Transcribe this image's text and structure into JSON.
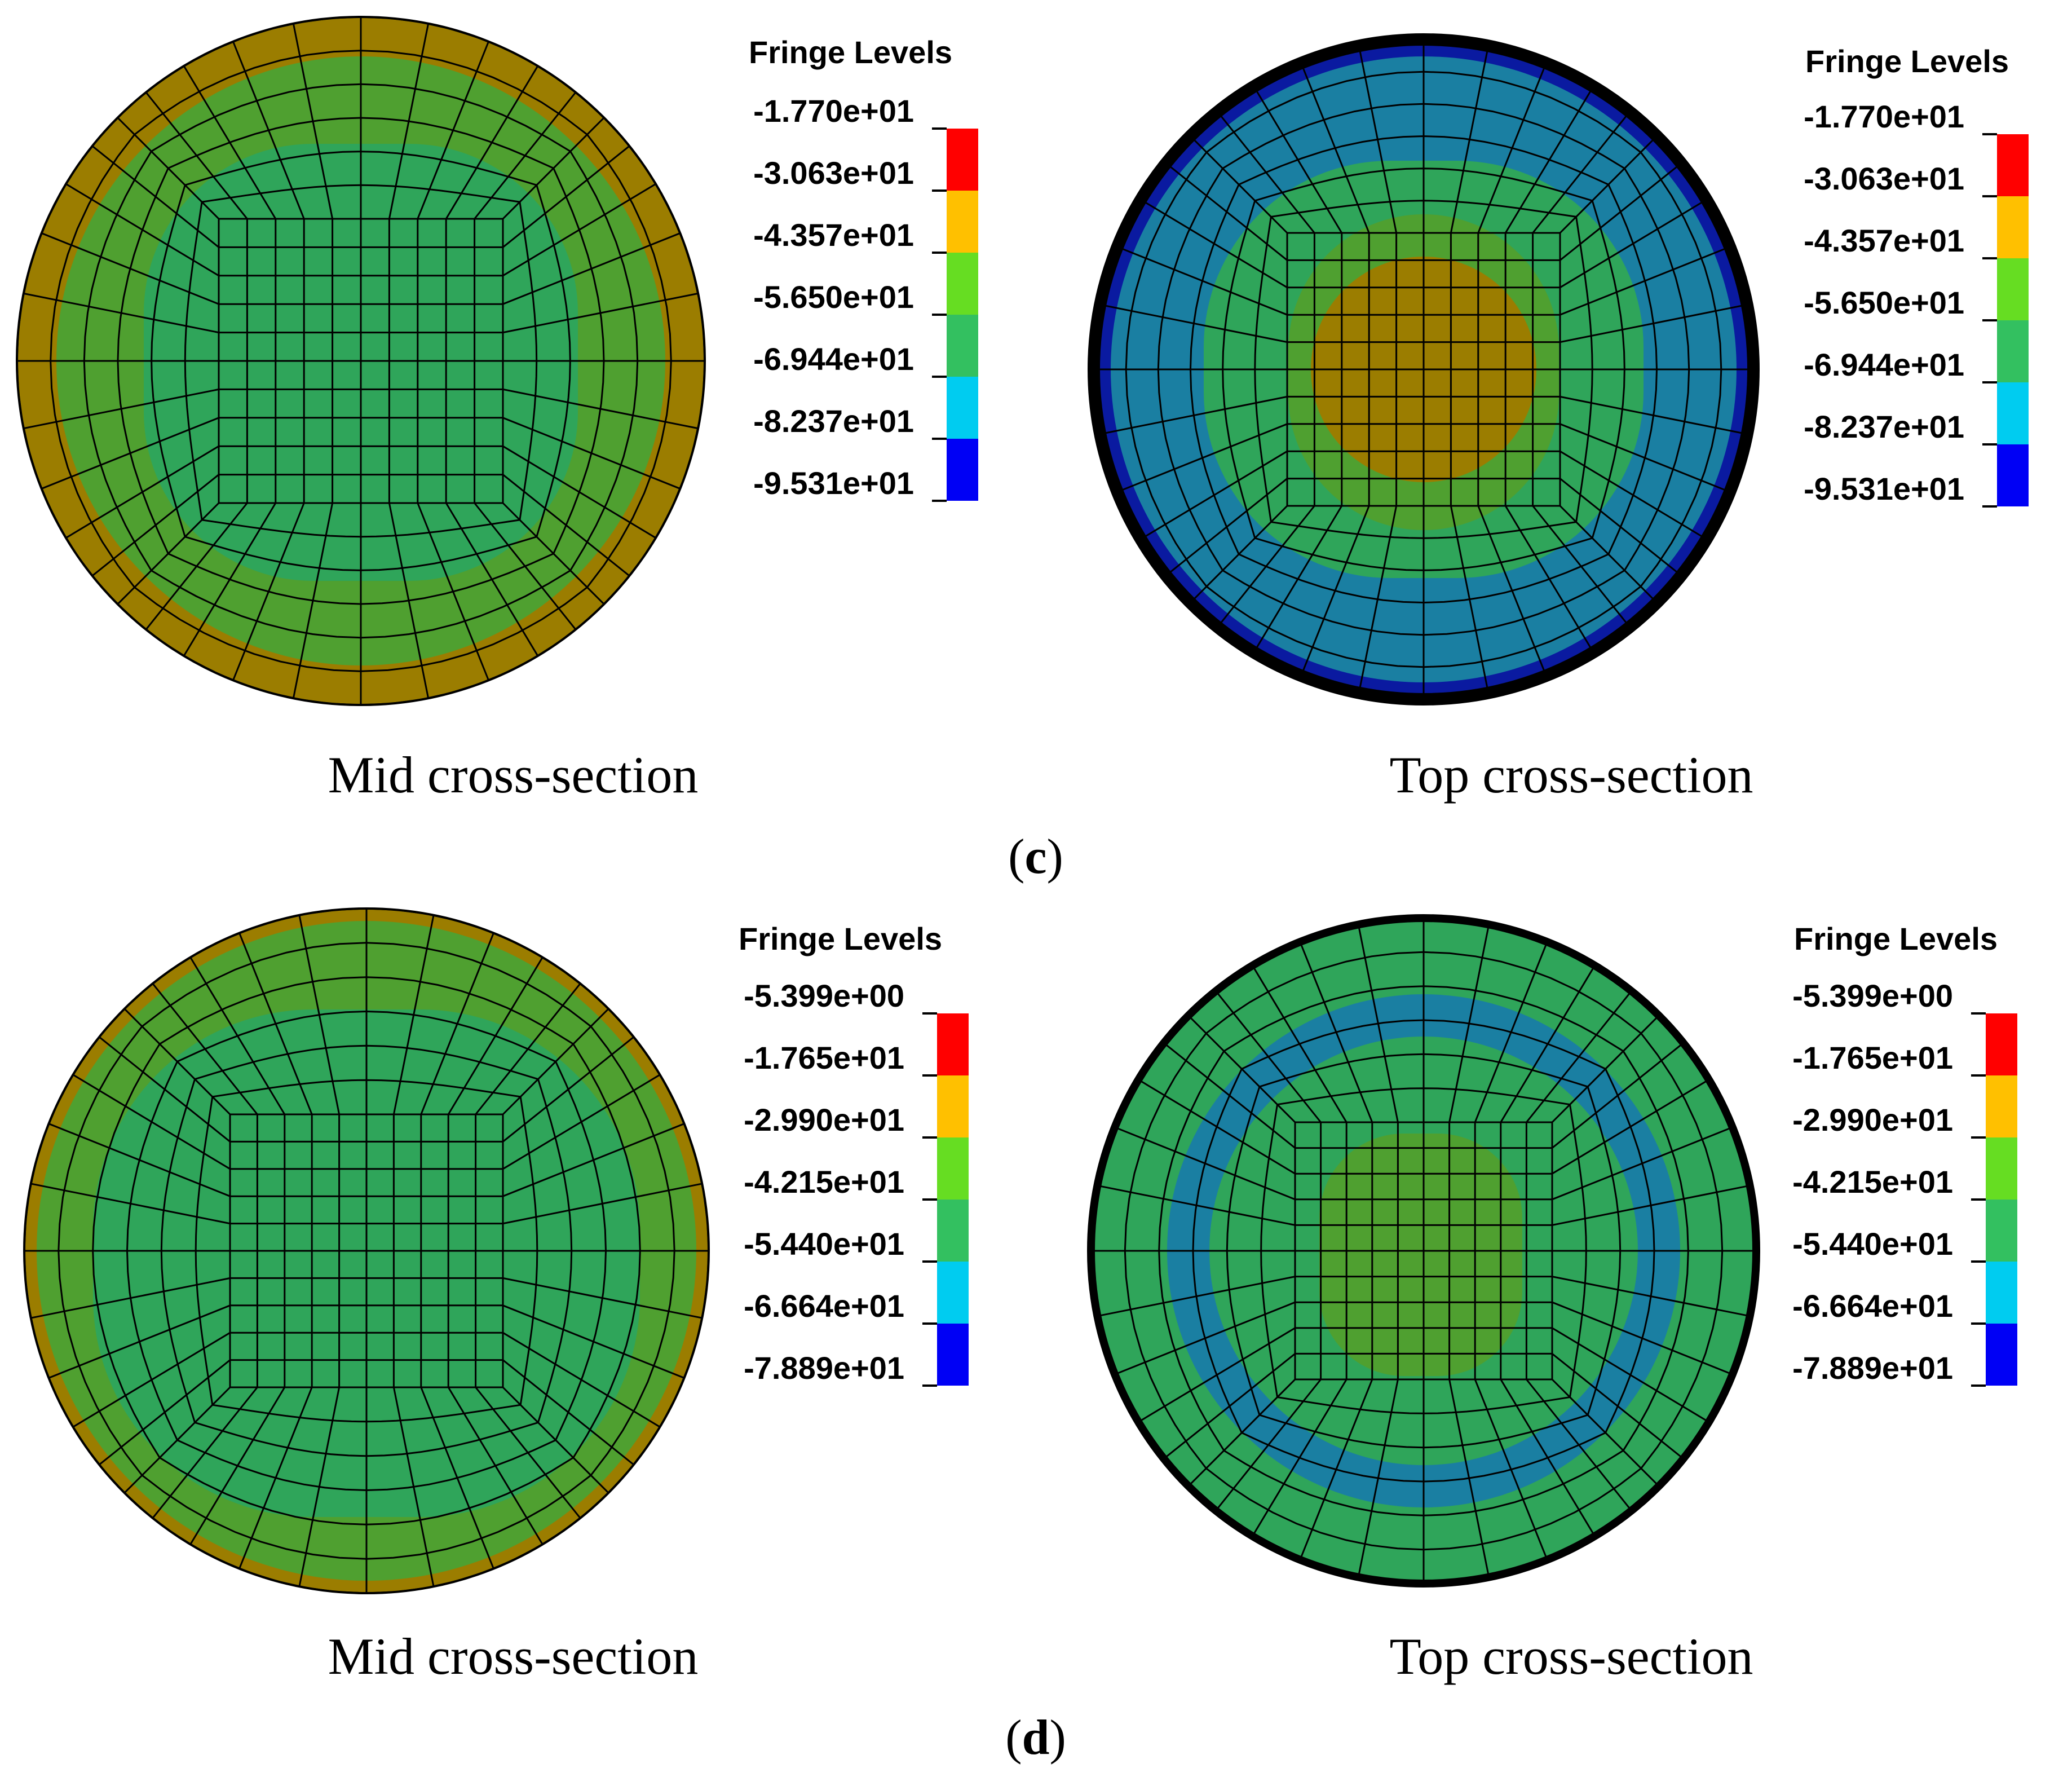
{
  "colors": {
    "red": "#ff0000",
    "orange": "#ffc000",
    "lime": "#66dd22",
    "green": "#33c060",
    "light_blue": "#00ccf0",
    "blue": "#0000f5",
    "olive": "#9b7d00",
    "olive_green": "#4fa030",
    "mid_green": "#2fa55a",
    "teal": "#1a7fa2",
    "navy": "#0a1aa0",
    "mesh": "#000000"
  },
  "panels": [
    {
      "id": "c",
      "label_open": "(",
      "label_letter": "c",
      "label_close": ")",
      "sections": [
        {
          "caption": "Mid cross-section",
          "legend": {
            "title": "Fringe Levels",
            "levels": [
              "-1.770e+01",
              "-3.063e+01",
              "-4.357e+01",
              "-5.650e+01",
              "-6.944e+01",
              "-8.237e+01",
              "-9.531e+01"
            ]
          }
        },
        {
          "caption": "Top cross-section",
          "legend": {
            "title": "Fringe Levels",
            "levels": [
              "-1.770e+01",
              "-3.063e+01",
              "-4.357e+01",
              "-5.650e+01",
              "-6.944e+01",
              "-8.237e+01",
              "-9.531e+01"
            ]
          }
        }
      ]
    },
    {
      "id": "d",
      "label_open": "(",
      "label_letter": "d",
      "label_close": ")",
      "sections": [
        {
          "caption": "Mid cross-section",
          "legend": {
            "title": "Fringe Levels",
            "levels": [
              "-5.399e+00",
              "-1.765e+01",
              "-2.990e+01",
              "-4.215e+01",
              "-5.440e+01",
              "-6.664e+01",
              "-7.889e+01"
            ]
          }
        },
        {
          "caption": "Top cross-section",
          "legend": {
            "title": "Fringe Levels",
            "levels": [
              "-5.399e+00",
              "-1.765e+01",
              "-2.990e+01",
              "-4.215e+01",
              "-5.440e+01",
              "-6.664e+01",
              "-7.889e+01"
            ]
          }
        }
      ]
    }
  ]
}
